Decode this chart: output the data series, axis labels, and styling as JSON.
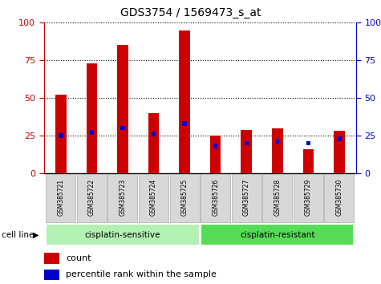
{
  "title": "GDS3754 / 1569473_s_at",
  "samples": [
    "GSM385721",
    "GSM385722",
    "GSM385723",
    "GSM385724",
    "GSM385725",
    "GSM385726",
    "GSM385727",
    "GSM385728",
    "GSM385729",
    "GSM385730"
  ],
  "count_values": [
    52,
    73,
    85,
    40,
    95,
    25,
    29,
    30,
    16,
    28
  ],
  "percentile_values": [
    25,
    27,
    30,
    26,
    33,
    18,
    20,
    21,
    20,
    23
  ],
  "groups": [
    {
      "label": "cisplatin-sensitive",
      "start": 0,
      "end": 5,
      "color": "#b3f0b3"
    },
    {
      "label": "cisplatin-resistant",
      "start": 5,
      "end": 10,
      "color": "#55dd55"
    }
  ],
  "bar_color": "#cc0000",
  "percentile_color": "#0000cc",
  "bar_width": 0.35,
  "ylim_left": [
    0,
    100
  ],
  "ylim_right": [
    0,
    100
  ],
  "yticks": [
    0,
    25,
    50,
    75,
    100
  ],
  "left_axis_color": "#cc0000",
  "right_axis_color": "#0000cc",
  "grid_color": "black",
  "cell_line_label": "cell line",
  "legend_count_label": "count",
  "legend_percentile_label": "percentile rank within the sample",
  "sample_box_color": "#d8d8d8",
  "fig_width": 4.75,
  "fig_height": 3.54,
  "dpi": 100
}
